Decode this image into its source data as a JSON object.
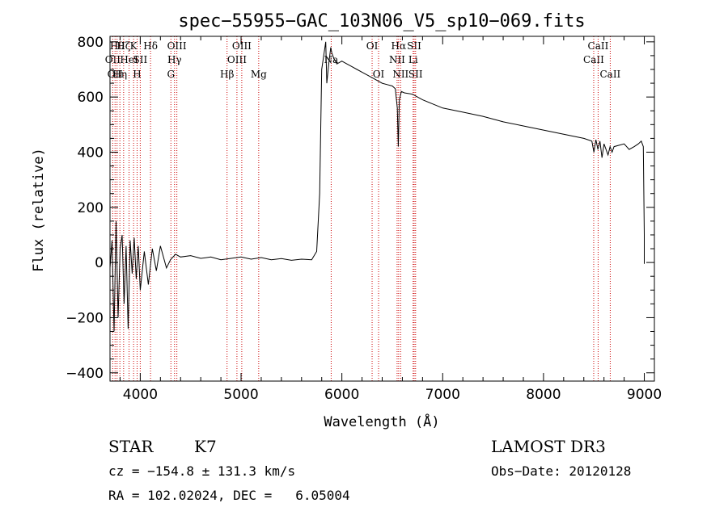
{
  "chart_data": {
    "type": "line",
    "title": "spec−55955−GAC_103N06_V5_sp10−069.fits",
    "xlabel": "Wavelength (Å)",
    "ylabel": "Flux (relative)",
    "xlim": [
      3700,
      9100
    ],
    "ylim": [
      -430,
      820
    ],
    "x_ticks": [
      4000,
      5000,
      6000,
      7000,
      8000,
      9000
    ],
    "x_tick_labels": [
      "4000",
      "5000",
      "6000",
      "7000",
      "8000",
      "9000"
    ],
    "y_ticks": [
      -400,
      -200,
      0,
      200,
      400,
      600,
      800
    ],
    "y_tick_labels": [
      "−400",
      "−200",
      "0",
      "200",
      "400",
      "600",
      "800"
    ],
    "series": [
      {
        "name": "flux",
        "x": [
          3700,
          3720,
          3740,
          3760,
          3780,
          3800,
          3820,
          3840,
          3860,
          3880,
          3900,
          3920,
          3940,
          3960,
          3980,
          4000,
          4040,
          4080,
          4120,
          4160,
          4200,
          4260,
          4300,
          4350,
          4400,
          4500,
          4600,
          4700,
          4800,
          4900,
          5000,
          5100,
          5200,
          5300,
          5400,
          5500,
          5600,
          5700,
          5750,
          5780,
          5800,
          5820,
          5840,
          5850,
          5870,
          5890,
          5900,
          5920,
          5950,
          6000,
          6050,
          6100,
          6150,
          6200,
          6250,
          6300,
          6350,
          6400,
          6450,
          6500,
          6530,
          6550,
          6560,
          6570,
          6590,
          6620,
          6700,
          6800,
          6900,
          7000,
          7200,
          7400,
          7600,
          7800,
          8000,
          8200,
          8400,
          8480,
          8500,
          8520,
          8540,
          8560,
          8580,
          8600,
          8640,
          8660,
          8680,
          8700,
          8750,
          8800,
          8850,
          8900,
          8940,
          8970,
          8990,
          9000,
          9000
        ],
        "values": [
          -20,
          80,
          -250,
          150,
          -200,
          50,
          100,
          -150,
          60,
          -240,
          80,
          -40,
          90,
          -60,
          60,
          -100,
          40,
          -80,
          50,
          -30,
          60,
          -20,
          10,
          30,
          20,
          25,
          15,
          20,
          10,
          15,
          20,
          12,
          18,
          10,
          14,
          8,
          12,
          10,
          40,
          250,
          700,
          750,
          800,
          650,
          720,
          780,
          760,
          740,
          720,
          730,
          720,
          710,
          700,
          690,
          680,
          670,
          660,
          650,
          645,
          640,
          630,
          560,
          420,
          590,
          620,
          615,
          610,
          590,
          575,
          560,
          545,
          530,
          510,
          495,
          480,
          465,
          450,
          440,
          400,
          445,
          410,
          440,
          380,
          430,
          390,
          420,
          400,
          420,
          425,
          430,
          410,
          420,
          430,
          440,
          420,
          100,
          -5
        ]
      }
    ],
    "line_markers": [
      {
        "wavelength": 3727,
        "label": "OII",
        "row": 2
      },
      {
        "wavelength": 3750,
        "label": "OII",
        "row": 3
      },
      {
        "wavelength": 3770,
        "label": "Hθ",
        "row": 1
      },
      {
        "wavelength": 3798,
        "label": "Hη",
        "row": 3
      },
      {
        "wavelength": 3835,
        "label": "Hζ",
        "row": 1
      },
      {
        "wavelength": 3889,
        "label": "HeI",
        "row": 2
      },
      {
        "wavelength": 3934,
        "label": "K",
        "row": 1
      },
      {
        "wavelength": 3969,
        "label": "H",
        "row": 3
      },
      {
        "wavelength": 4000,
        "label": "SII",
        "row": 2
      },
      {
        "wavelength": 4102,
        "label": "Hδ",
        "row": 1
      },
      {
        "wavelength": 4304,
        "label": "G",
        "row": 3
      },
      {
        "wavelength": 4340,
        "label": "Hγ",
        "row": 2
      },
      {
        "wavelength": 4363,
        "label": "OIII",
        "row": 1
      },
      {
        "wavelength": 4861,
        "label": "Hβ",
        "row": 3
      },
      {
        "wavelength": 4959,
        "label": "OIII",
        "row": 2
      },
      {
        "wavelength": 5007,
        "label": "OIII",
        "row": 1
      },
      {
        "wavelength": 5175,
        "label": "Mg",
        "row": 3
      },
      {
        "wavelength": 5894,
        "label": "Na",
        "row": 2
      },
      {
        "wavelength": 6300,
        "label": "OI",
        "row": 1
      },
      {
        "wavelength": 6364,
        "label": "OI",
        "row": 3
      },
      {
        "wavelength": 6548,
        "label": "NII",
        "row": 2
      },
      {
        "wavelength": 6563,
        "label": "Hα",
        "row": 1
      },
      {
        "wavelength": 6583,
        "label": "NII",
        "row": 3
      },
      {
        "wavelength": 6707,
        "label": "Li",
        "row": 2
      },
      {
        "wavelength": 6717,
        "label": "SII",
        "row": 1
      },
      {
        "wavelength": 6731,
        "label": "SII",
        "row": 3
      },
      {
        "wavelength": 8498,
        "label": "CaII",
        "row": 2
      },
      {
        "wavelength": 8542,
        "label": "CaII",
        "row": 1
      },
      {
        "wavelength": 8662,
        "label": "CaII",
        "row": 3
      }
    ],
    "marker_color": "#cc0000",
    "line_color": "#000000"
  },
  "info": {
    "object_class": "STAR",
    "subclass": "K7",
    "survey": "LAMOST DR3",
    "cz_text": "cz = −154.8 ± 131.3 km/s",
    "obs_date": "Obs−Date: 20120128",
    "coords_text": "RA = 102.02024, DEC =   6.05004"
  }
}
